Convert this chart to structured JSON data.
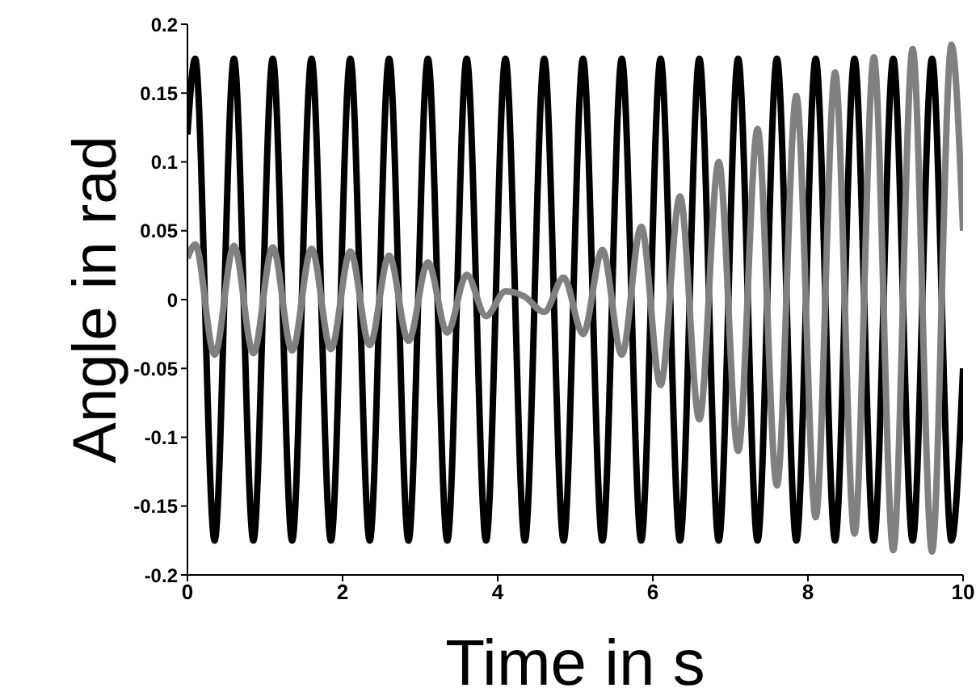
{
  "chart_data": {
    "type": "line",
    "xlabel": "Time in s",
    "ylabel": "Angle in rad",
    "xlim": [
      0,
      10
    ],
    "xticks": [
      0,
      2,
      4,
      6,
      8,
      10
    ],
    "ylim": [
      -0.2,
      0.2
    ],
    "yticks": [
      -0.2,
      -0.15,
      -0.1,
      -0.05,
      0,
      0.05,
      0.1,
      0.15,
      0.2
    ],
    "grid": false,
    "marker": "none",
    "line_style": "solid",
    "series": [
      {
        "color": "#000000",
        "x": [
          0,
          0.1,
          0.35,
          0.6,
          0.85,
          1.1,
          1.35,
          1.6,
          1.85,
          2.1,
          2.35,
          2.6,
          2.85,
          3.1,
          3.35,
          3.6,
          3.85,
          4.1,
          4.35,
          4.6,
          4.85,
          5.1,
          5.35,
          5.6,
          5.85,
          6.1,
          6.35,
          6.6,
          6.85,
          7.1,
          7.35,
          7.6,
          7.85,
          8.1,
          8.35,
          8.6,
          8.85,
          9.1,
          9.35,
          9.6,
          9.85,
          10
        ],
        "values": [
          0.12,
          0.175,
          -0.175,
          0.175,
          -0.175,
          0.175,
          -0.175,
          0.175,
          -0.175,
          0.175,
          -0.175,
          0.175,
          -0.175,
          0.175,
          -0.175,
          0.175,
          -0.175,
          0.175,
          -0.175,
          0.175,
          -0.175,
          0.175,
          -0.175,
          0.175,
          -0.175,
          0.175,
          -0.175,
          0.175,
          -0.175,
          0.175,
          -0.175,
          0.175,
          -0.175,
          0.175,
          -0.175,
          0.175,
          -0.175,
          0.175,
          -0.175,
          0.175,
          -0.175,
          -0.05
        ]
      },
      {
        "color": "#808080",
        "x": [
          0,
          0.1,
          0.35,
          0.6,
          0.85,
          1.1,
          1.35,
          1.6,
          1.85,
          2.1,
          2.35,
          2.6,
          2.85,
          3.1,
          3.35,
          3.6,
          3.85,
          4.1,
          4.35,
          4.6,
          4.85,
          5.1,
          5.35,
          5.6,
          5.85,
          6.1,
          6.35,
          6.6,
          6.85,
          7.1,
          7.35,
          7.6,
          7.85,
          8.1,
          8.35,
          8.6,
          8.85,
          9.1,
          9.35,
          9.6,
          9.85,
          10
        ],
        "values": [
          0.03,
          0.04,
          -0.04,
          0.039,
          -0.039,
          0.038,
          -0.037,
          0.037,
          -0.036,
          0.035,
          -0.033,
          0.032,
          -0.03,
          0.027,
          -0.024,
          0.018,
          -0.012,
          0.006,
          0.002,
          -0.009,
          0.016,
          -0.025,
          0.036,
          -0.04,
          0.053,
          -0.062,
          0.075,
          -0.087,
          0.1,
          -0.11,
          0.124,
          -0.135,
          0.148,
          -0.158,
          0.165,
          -0.17,
          0.176,
          -0.182,
          0.182,
          -0.183,
          0.185,
          0.05
        ]
      }
    ]
  }
}
